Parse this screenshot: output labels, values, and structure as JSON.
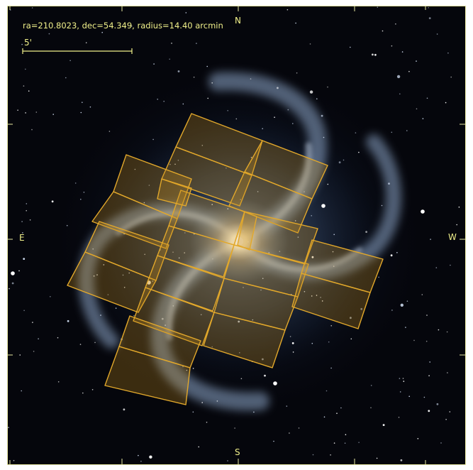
{
  "header": {
    "coordinates": "ra=210.8023, dec=54.349, radius=14.40 arcmin",
    "scale_label": "5'"
  },
  "compass": {
    "north": "N",
    "south": "S",
    "east": "E",
    "west": "W"
  },
  "colors": {
    "sky_background": "#05060c",
    "galaxy_core": "#fff6dc",
    "galaxy_arms": "#8aa6c8",
    "footprint_stroke": "#e2a82b",
    "footprint_fill": "#c98f1e",
    "label_text": "#f0f08a",
    "frame": "#e8e8a0"
  },
  "overlay": {
    "type": "observation-footprint-mosaic",
    "tile_count": 22
  }
}
